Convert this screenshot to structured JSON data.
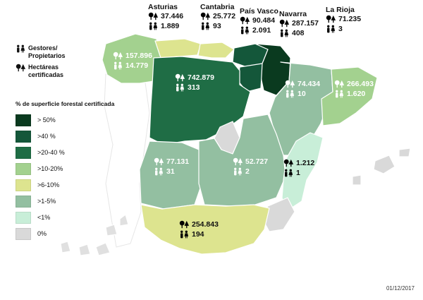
{
  "colors": {
    "gt50": "#0a3a1f",
    "40": "#14573a",
    "20_40": "#1f6d45",
    "10_20": "#a3d18f",
    "6_10": "#dde48f",
    "1_5": "#93bfa1",
    "lt1": "#c8eed8",
    "zero": "#d9d9d9"
  },
  "key": {
    "owners": "Gestores/\nPropietarios",
    "hectares": "Hectáreas\ncertificadas"
  },
  "legend": {
    "title": "% de superficie forestal certificada",
    "items": [
      {
        "label": "> 50%",
        "color": "#0a3a1f"
      },
      {
        "label": ">40 %",
        "color": "#14573a"
      },
      {
        "label": ">20-40 %",
        "color": "#1f6d45"
      },
      {
        "label": ">10-20%",
        "color": "#a3d18f"
      },
      {
        "label": ">6-10%",
        "color": "#dde48f"
      },
      {
        "label": ">1-5%",
        "color": "#93bfa1"
      },
      {
        "label": "<1%",
        "color": "#c8eed8"
      },
      {
        "label": "0%",
        "color": "#d9d9d9"
      }
    ]
  },
  "regions": {
    "asturias": {
      "name": "Asturias",
      "hectares": "37.446",
      "owners": "1.889"
    },
    "cantabria": {
      "name": "Cantabria",
      "hectares": "25.772",
      "owners": "93"
    },
    "pais_vasco": {
      "name": "País Vasco",
      "hectares": "90.484",
      "owners": "2.091"
    },
    "navarra": {
      "name": "Navarra",
      "hectares": "287.157",
      "owners": "408"
    },
    "la_rioja": {
      "name": "La Rioja",
      "hectares": "71.235",
      "owners": "3"
    },
    "galicia": {
      "hectares": "157.896",
      "owners": "14.779"
    },
    "castilla_leon": {
      "hectares": "742.879",
      "owners": "313"
    },
    "aragon": {
      "hectares": "74.434",
      "owners": "10"
    },
    "cataluna": {
      "hectares": "266.493",
      "owners": "1.620"
    },
    "extremadura": {
      "hectares": "77.131",
      "owners": "31"
    },
    "castilla_la_mancha": {
      "hectares": "52.727",
      "owners": "2"
    },
    "valencia": {
      "hectares": "1.212",
      "owners": "1"
    },
    "andalucia": {
      "hectares": "254.843",
      "owners": "194"
    }
  },
  "date": "01/12/2017"
}
